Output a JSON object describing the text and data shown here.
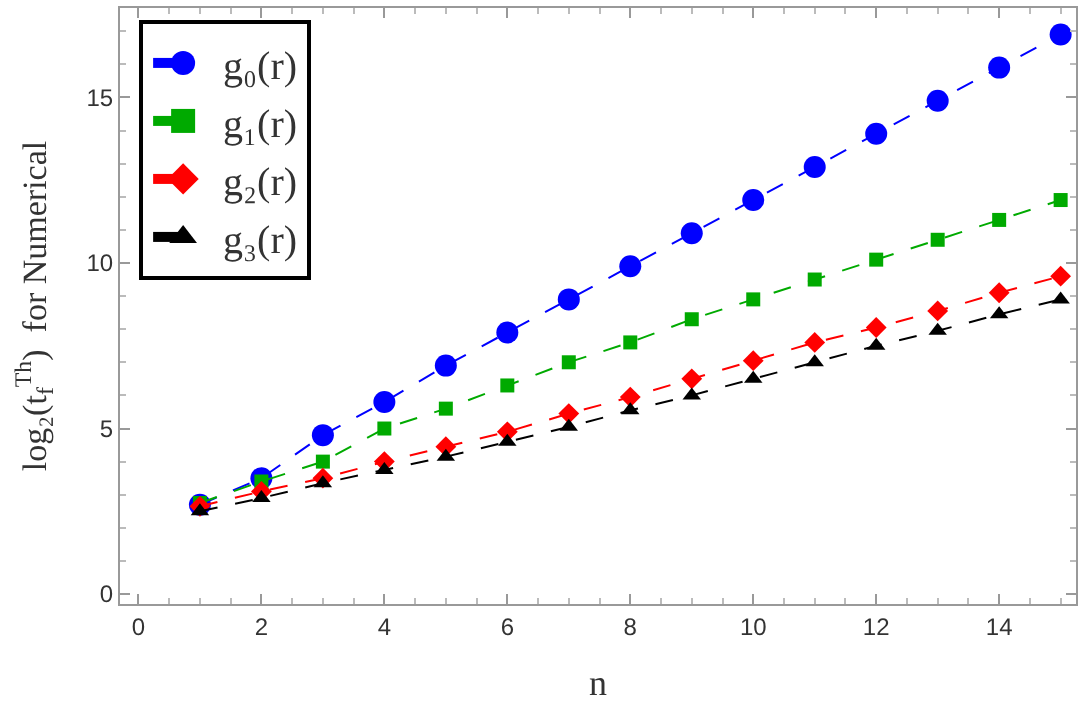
{
  "chart_data": {
    "type": "line",
    "xlabel": "n",
    "ylabel": "log₂(t$_{f}$$^{Th}$)  for Numerical",
    "x": [
      1,
      2,
      3,
      4,
      5,
      6,
      7,
      8,
      9,
      10,
      11,
      12,
      13,
      14,
      15
    ],
    "series": [
      {
        "name": "g₀(r)",
        "color": "#0000ff",
        "marker": "circle",
        "values": [
          2.7,
          3.5,
          4.8,
          5.8,
          6.9,
          7.9,
          8.9,
          9.9,
          10.9,
          11.9,
          12.9,
          13.9,
          14.9,
          15.9,
          16.9
        ]
      },
      {
        "name": "g₁(r)",
        "color": "#00aa00",
        "marker": "square",
        "values": [
          2.75,
          3.4,
          4.0,
          5.0,
          5.6,
          6.3,
          7.0,
          7.6,
          8.3,
          8.9,
          9.5,
          10.1,
          10.7,
          11.3,
          11.9
        ]
      },
      {
        "name": "g₂(r)",
        "color": "#ff0000",
        "marker": "diamond",
        "values": [
          2.65,
          3.1,
          3.5,
          4.0,
          4.45,
          4.9,
          5.45,
          5.95,
          6.5,
          7.05,
          7.6,
          8.05,
          8.55,
          9.1,
          9.6
        ]
      },
      {
        "name": "g₃(r)",
        "color": "#000000",
        "marker": "triangle",
        "values": [
          2.5,
          2.9,
          3.35,
          3.75,
          4.15,
          4.6,
          5.05,
          5.55,
          6.0,
          6.5,
          7.0,
          7.5,
          7.95,
          8.45,
          8.9
        ]
      }
    ],
    "line_style": "dashed",
    "legend": "top left",
    "xlim": [
      -0.3,
      15.25
    ],
    "ylim": [
      -0.3,
      17.7
    ],
    "xticks": [
      0,
      2,
      4,
      6,
      8,
      10,
      12,
      14
    ],
    "yticks": [
      0,
      5,
      10,
      15
    ]
  }
}
